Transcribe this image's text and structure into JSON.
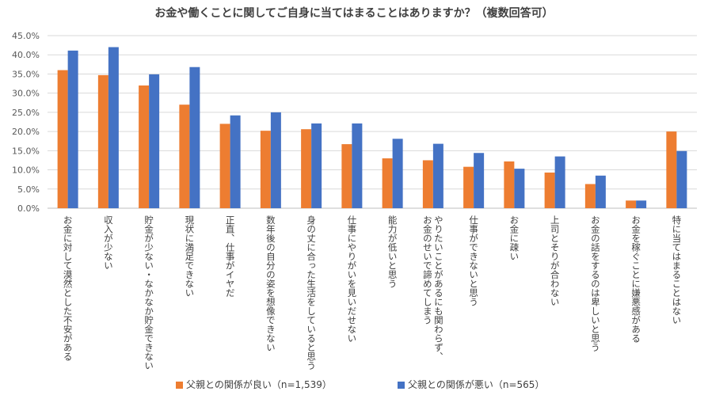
{
  "chart_data": {
    "type": "bar",
    "title": "お金や働くことに関してご自身に当てはまることはありますか？（複数回答可）",
    "categories": [
      "お金に対して漠然とした不安がある",
      "収入が少ない",
      "貯金が少ない・なかなか貯金できない",
      "現状に満足できない",
      "正直、仕事がイヤだ",
      "数年後の自分の姿を想像できない",
      "身の丈に合った生活をしていると思う",
      "仕事にやりがいを見いだせない",
      "能力が低いと思う",
      "やりたいことがあるにも関わらず、お金のせいで諦めてしまう",
      "仕事ができないと思う",
      "お金に疎い",
      "上司とそりが合わない",
      "お金の話をするのは卑しいと思う",
      "お金を稼ぐことに嫌悪感がある",
      "特に当てはまることはない"
    ],
    "series": [
      {
        "name": "父親との関係が良い（n=1,539）",
        "color": "#ED7D31",
        "values": [
          36.0,
          34.7,
          32.0,
          27.0,
          22.0,
          20.2,
          20.6,
          16.7,
          13.0,
          12.5,
          10.8,
          12.2,
          9.3,
          6.3,
          2.0,
          20.0
        ]
      },
      {
        "name": "父親との関係が悪い（n=565）",
        "color": "#4472C4",
        "values": [
          41.1,
          42.0,
          34.9,
          36.8,
          24.2,
          25.0,
          22.1,
          22.1,
          18.1,
          16.8,
          14.4,
          10.3,
          13.5,
          8.5,
          2.0,
          14.9
        ]
      }
    ],
    "ylim": [
      0,
      45
    ],
    "yticks": [
      "0.0%",
      "5.0%",
      "10.0%",
      "15.0%",
      "20.0%",
      "25.0%",
      "30.0%",
      "35.0%",
      "40.0%",
      "45.0%"
    ],
    "ytick_step": 5,
    "grid": true,
    "xlabel": "",
    "ylabel": "",
    "legend": "bottom"
  }
}
